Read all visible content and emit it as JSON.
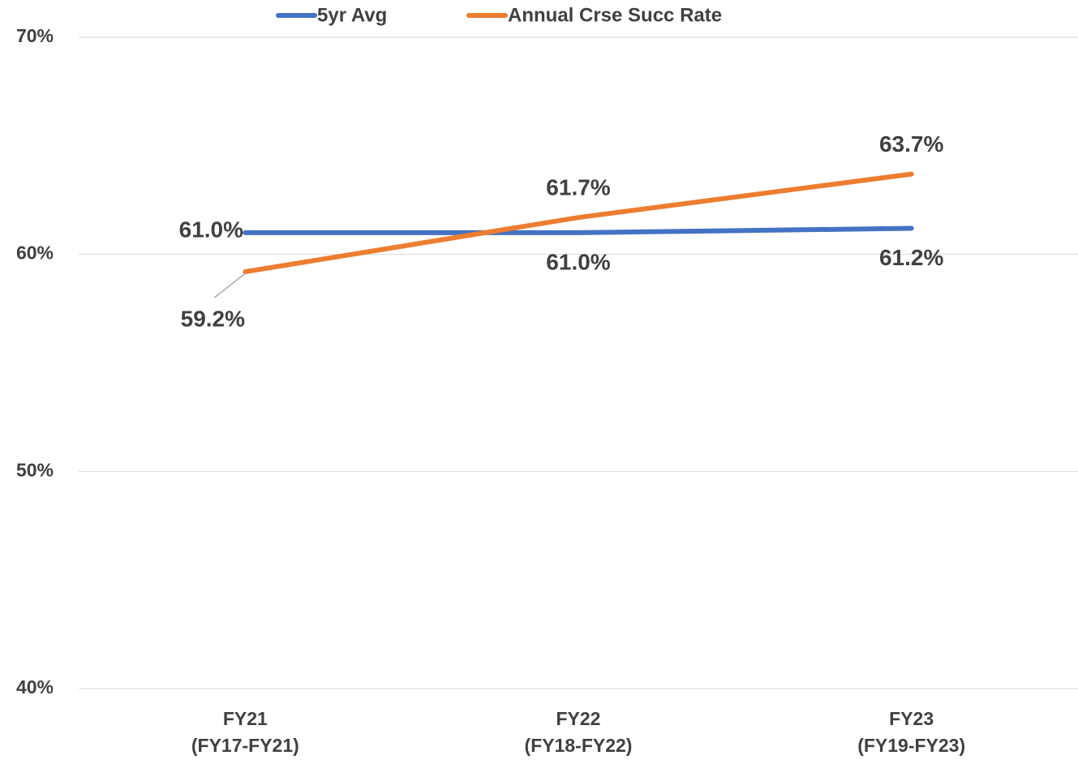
{
  "chart_data": {
    "type": "line",
    "categories": [
      "FY21\n(FY17-FY21)",
      "FY22\n(FY18-FY22)",
      "FY23\n(FY19-FY23)"
    ],
    "series": [
      {
        "name": "5yr Avg",
        "color": "#4472c4",
        "values": [
          61.0,
          61.0,
          61.2
        ],
        "value_labels": [
          "61.0%",
          "61.0%",
          "61.2%"
        ]
      },
      {
        "name": "Annual Crse Succ Rate",
        "color": "#ed7d31",
        "values": [
          59.2,
          61.7,
          63.7
        ],
        "value_labels": [
          "59.2%",
          "61.7%",
          "63.7%"
        ]
      }
    ],
    "ylim": [
      40,
      70
    ],
    "yticks": [
      {
        "value": 40,
        "label": "40%"
      },
      {
        "value": 50,
        "label": "50%"
      },
      {
        "value": 60,
        "label": "60%"
      },
      {
        "value": 70,
        "label": "70%"
      }
    ],
    "grid": true,
    "legend": "top"
  }
}
